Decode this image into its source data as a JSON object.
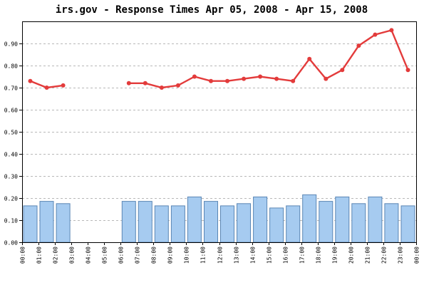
{
  "chart_data": {
    "type": "bar+line",
    "title": "irs.gov - Response Times Apr 05, 2008 - Apr 15, 2008",
    "xlabel": "",
    "ylabel": "",
    "ylim": [
      0,
      1.0
    ],
    "y_ticks": [
      "0.00",
      "0.10",
      "0.20",
      "0.30",
      "0.40",
      "0.50",
      "0.60",
      "0.70",
      "0.80",
      "0.90"
    ],
    "grid": true,
    "legend": "none",
    "categories": [
      "00:00",
      "01:00",
      "02:00",
      "03:00",
      "04:00",
      "05:00",
      "06:00",
      "07:00",
      "08:00",
      "09:00",
      "10:00",
      "11:00",
      "12:00",
      "13:00",
      "14:00",
      "15:00",
      "16:00",
      "17:00",
      "18:00",
      "19:00",
      "20:00",
      "21:00",
      "22:00",
      "23:00",
      "00:00"
    ],
    "bars": [
      0.165,
      0.185,
      0.175,
      null,
      null,
      null,
      0.185,
      0.185,
      0.165,
      0.165,
      0.205,
      0.185,
      0.165,
      0.175,
      0.205,
      0.155,
      0.165,
      0.215,
      0.185,
      0.205,
      0.175,
      0.205,
      0.175,
      0.165
    ],
    "line": [
      0.73,
      0.7,
      0.71,
      null,
      null,
      null,
      0.72,
      0.72,
      0.7,
      0.71,
      0.75,
      0.73,
      0.73,
      0.74,
      0.75,
      0.74,
      0.73,
      0.83,
      0.74,
      0.78,
      0.89,
      0.94,
      0.96,
      0.78
    ],
    "colors": {
      "bar_fill": "#a6cbf0",
      "bar_stroke": "#5a86b4",
      "line": "#e33b3b",
      "grid": "#b8b8b8"
    }
  }
}
